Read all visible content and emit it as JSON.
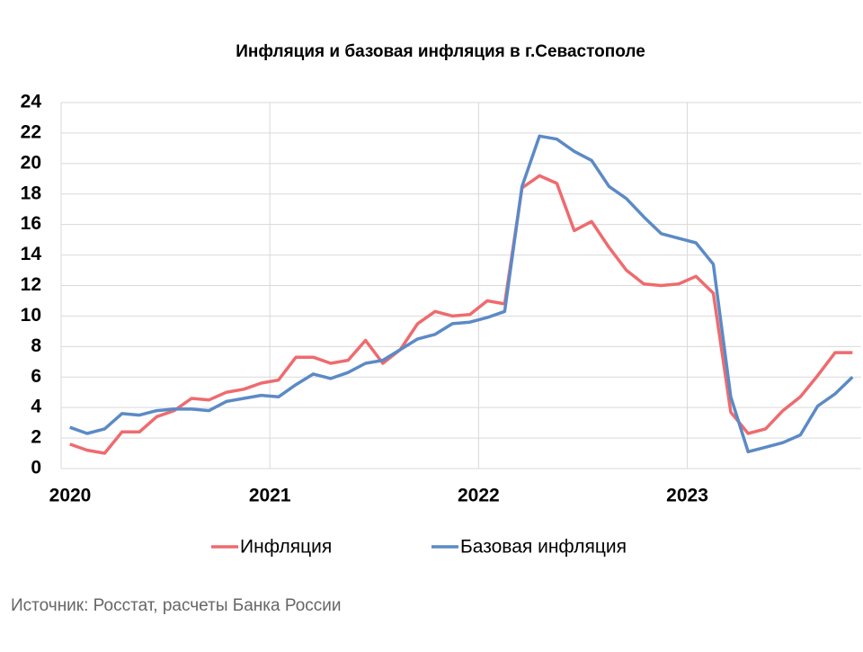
{
  "chart_data": {
    "type": "line",
    "title": "Инфляция и базовая инфляция в г.Севастополе",
    "categories": [
      "2020",
      null,
      null,
      null,
      null,
      null,
      null,
      null,
      null,
      null,
      null,
      null,
      "2021",
      null,
      null,
      null,
      null,
      null,
      null,
      null,
      null,
      null,
      null,
      null,
      "2022",
      null,
      null,
      null,
      null,
      null,
      null,
      null,
      null,
      null,
      null,
      null,
      "2023",
      null,
      null,
      null,
      null,
      null,
      null,
      null,
      null,
      null
    ],
    "series": [
      {
        "name": "Инфляция",
        "color": "#ee6b6e",
        "values": [
          1.6,
          1.2,
          1.0,
          2.4,
          2.4,
          3.4,
          3.8,
          4.6,
          4.5,
          5.0,
          5.2,
          5.6,
          5.8,
          7.3,
          7.3,
          6.9,
          7.1,
          8.4,
          6.9,
          7.8,
          9.5,
          10.3,
          10.0,
          10.1,
          11.0,
          10.8,
          18.4,
          19.2,
          18.7,
          15.6,
          16.2,
          14.5,
          13.0,
          12.1,
          12.0,
          12.1,
          12.6,
          11.5,
          3.7,
          2.3,
          2.6,
          3.8,
          4.7,
          6.1,
          7.6,
          7.6
        ]
      },
      {
        "name": "Базовая инфляция",
        "color": "#5b8ac6",
        "values": [
          2.7,
          2.3,
          2.6,
          3.6,
          3.5,
          3.8,
          3.9,
          3.9,
          3.8,
          4.4,
          4.6,
          4.8,
          4.7,
          5.5,
          6.2,
          5.9,
          6.3,
          6.9,
          7.1,
          7.8,
          8.5,
          8.8,
          9.5,
          9.6,
          9.9,
          10.3,
          18.5,
          21.8,
          21.6,
          20.8,
          20.2,
          18.5,
          17.7,
          16.5,
          15.4,
          15.1,
          14.8,
          13.4,
          4.7,
          1.1,
          1.4,
          1.7,
          2.2,
          4.1,
          4.9,
          6.0
        ]
      }
    ],
    "ylim": [
      0,
      24
    ],
    "yticks": [
      0,
      2,
      4,
      6,
      8,
      10,
      12,
      14,
      16,
      18,
      20,
      22,
      24
    ],
    "grid": true,
    "legend": "bottom",
    "source": "Источник: Росстат, расчеты Банка России"
  }
}
